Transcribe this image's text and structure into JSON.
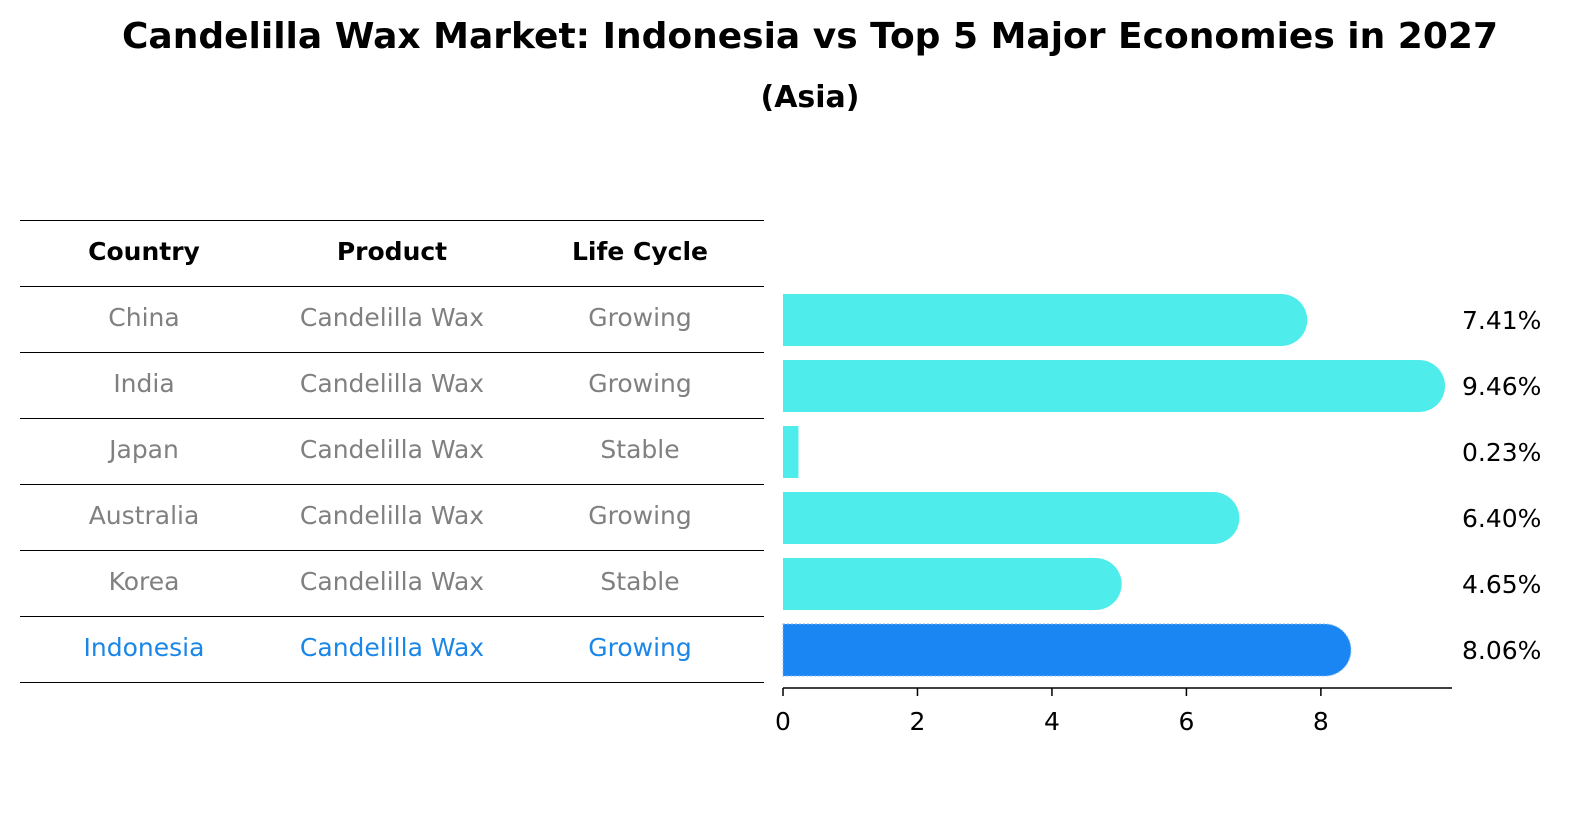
{
  "title": "Candelilla Wax Market: Indonesia vs Top 5 Major Economies in 2027",
  "subtitle": "(Asia)",
  "table": {
    "headers": [
      "Country",
      "Product",
      "Life Cycle"
    ],
    "rows": [
      {
        "country": "China",
        "product": "Candelilla Wax",
        "life_cycle": "Growing"
      },
      {
        "country": "India",
        "product": "Candelilla Wax",
        "life_cycle": "Growing"
      },
      {
        "country": "Japan",
        "product": "Candelilla Wax",
        "life_cycle": "Stable"
      },
      {
        "country": "Australia",
        "product": "Candelilla Wax",
        "life_cycle": "Growing"
      },
      {
        "country": "Korea",
        "product": "Candelilla Wax",
        "life_cycle": "Stable"
      },
      {
        "country": "Indonesia",
        "product": "Candelilla Wax",
        "life_cycle": "Growing"
      }
    ]
  },
  "colors": {
    "bar": "#4eeceb",
    "highlight": "#1a86f4",
    "highlight_text": "#1a86e8",
    "muted_text": "#808080"
  },
  "chart_data": {
    "type": "bar",
    "orientation": "horizontal",
    "categories": [
      "China",
      "India",
      "Japan",
      "Australia",
      "Korea",
      "Indonesia"
    ],
    "values": [
      7.41,
      9.46,
      0.23,
      6.4,
      4.65,
      8.06
    ],
    "value_labels": [
      "7.41%",
      "9.46%",
      "0.23%",
      "6.40%",
      "4.65%",
      "8.06%"
    ],
    "highlight": "Indonesia",
    "xlim": [
      0,
      9.95
    ],
    "xticks": [
      0,
      2,
      4,
      6,
      8
    ],
    "xtick_labels": [
      "0",
      "2",
      "4",
      "6",
      "8"
    ],
    "grid": false
  }
}
